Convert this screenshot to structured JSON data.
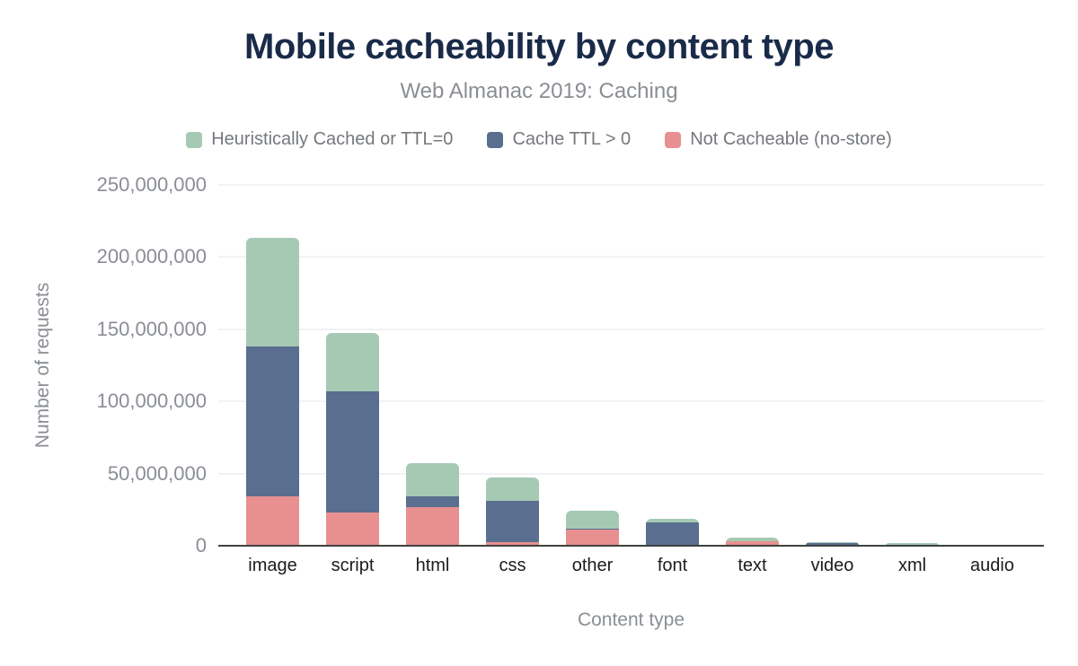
{
  "chart_data": {
    "type": "bar",
    "stacked": true,
    "title": "Mobile cacheability by content type",
    "subtitle": "Web Almanac 2019: Caching",
    "xlabel": "Content type",
    "ylabel": "Number of requests",
    "categories": [
      "image",
      "script",
      "html",
      "css",
      "other",
      "font",
      "text",
      "video",
      "xml",
      "audio"
    ],
    "series": [
      {
        "name": "Not Cacheable (no-store)",
        "color": "#e89090",
        "values": [
          34000000,
          23000000,
          26500000,
          2300000,
          11200000,
          300000,
          3100000,
          200000,
          200000,
          100000
        ]
      },
      {
        "name": "Cache TTL > 0",
        "color": "#5a6e8f",
        "values": [
          104000000,
          84000000,
          7500000,
          28500000,
          800000,
          16000000,
          200000,
          1900000,
          500000,
          100000
        ]
      },
      {
        "name": "Heuristically Cached or TTL=0",
        "color": "#a6c9b4",
        "values": [
          75500000,
          40500000,
          23000000,
          16500000,
          12500000,
          2500000,
          2200000,
          200000,
          1400000,
          100000
        ]
      }
    ],
    "legend": [
      {
        "label": "Heuristically Cached or TTL=0",
        "color": "#a6c9b4"
      },
      {
        "label": "Cache TTL > 0",
        "color": "#5a6e8f"
      },
      {
        "label": "Not Cacheable (no-store)",
        "color": "#e89090"
      }
    ],
    "legend_position": "top",
    "grid": true,
    "ylim": [
      0,
      250000000
    ],
    "yticks": [
      0,
      50000000,
      100000000,
      150000000,
      200000000,
      250000000
    ],
    "ytick_labels": [
      "0",
      "50,000,000",
      "100,000,000",
      "150,000,000",
      "200,000,000",
      "250,000,000"
    ],
    "colors": {
      "title": "#1a2b49",
      "axis_text": "#8a8e94",
      "category_text": "#1b1c1e",
      "legend_text": "#75787d",
      "gridline": "#f2f2f4",
      "axis_line": "#3f4142",
      "background": "#ffffff"
    }
  }
}
